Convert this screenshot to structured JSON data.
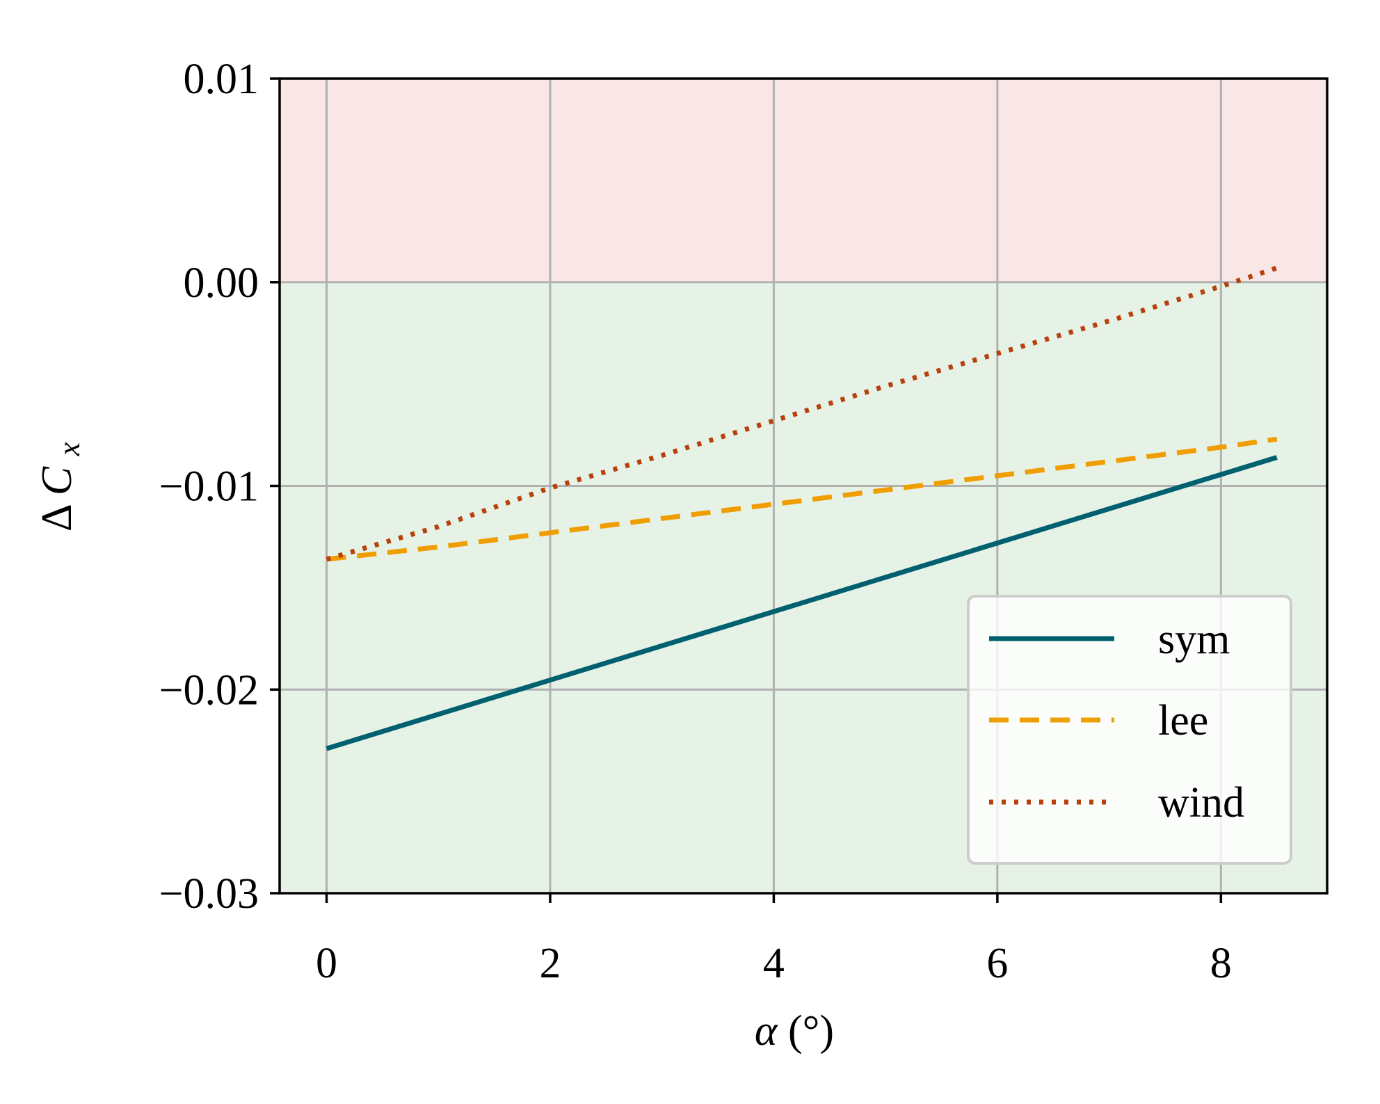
{
  "chart_data": {
    "type": "line",
    "x_ticks": [
      "0",
      "2",
      "4",
      "6",
      "8"
    ],
    "y_ticks": [
      "0.01",
      "0.00",
      "−0.01",
      "−0.02",
      "−0.03"
    ],
    "xlabel_symbol": "α",
    "xlabel_unit": "(°)",
    "ylabel_delta": "Δ",
    "ylabel_symbol": "C",
    "ylabel_sub": "x",
    "xlim": [
      -0.42,
      8.95
    ],
    "ylim": [
      -0.03,
      0.01
    ],
    "grid": true,
    "legend_position": "lower-right",
    "regions": [
      {
        "from": 0.0,
        "to": 0.01,
        "color": "#f9e6e6"
      },
      {
        "from": -0.03,
        "to": 0.0,
        "color": "#e7f2e7"
      }
    ],
    "series": [
      {
        "name": "sym",
        "style": "solid",
        "color": "#00606f",
        "x": [
          0,
          8.5
        ],
        "y": [
          -0.0229,
          -0.0086
        ]
      },
      {
        "name": "lee",
        "style": "dashed",
        "color": "#f09d00",
        "x": [
          0,
          1,
          2,
          3,
          4,
          5,
          6,
          7,
          8,
          8.5
        ],
        "y": [
          -0.0136,
          -0.013,
          -0.0123,
          -0.0116,
          -0.0109,
          -0.0102,
          -0.0095,
          -0.0088,
          -0.0081,
          -0.0077
        ]
      },
      {
        "name": "wind",
        "style": "dotted",
        "color": "#b8400a",
        "x": [
          0,
          1,
          2,
          3,
          4,
          5,
          6,
          7,
          8,
          8.5
        ],
        "y": [
          -0.0136,
          -0.012,
          -0.0101,
          -0.0085,
          -0.0068,
          -0.0051,
          -0.0035,
          -0.0019,
          -0.0002,
          0.0007
        ]
      }
    ]
  }
}
